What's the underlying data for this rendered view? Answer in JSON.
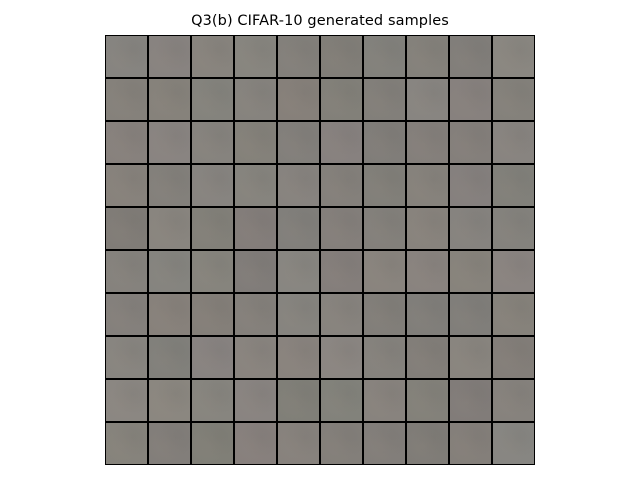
{
  "figure": {
    "title": "Q3(b) CIFAR-10 generated samples"
  },
  "image": {
    "rows": 10,
    "cols": 10,
    "content": "grid of generated CIFAR-10 samples",
    "base_color": "#838079",
    "border_color": "#000000"
  }
}
